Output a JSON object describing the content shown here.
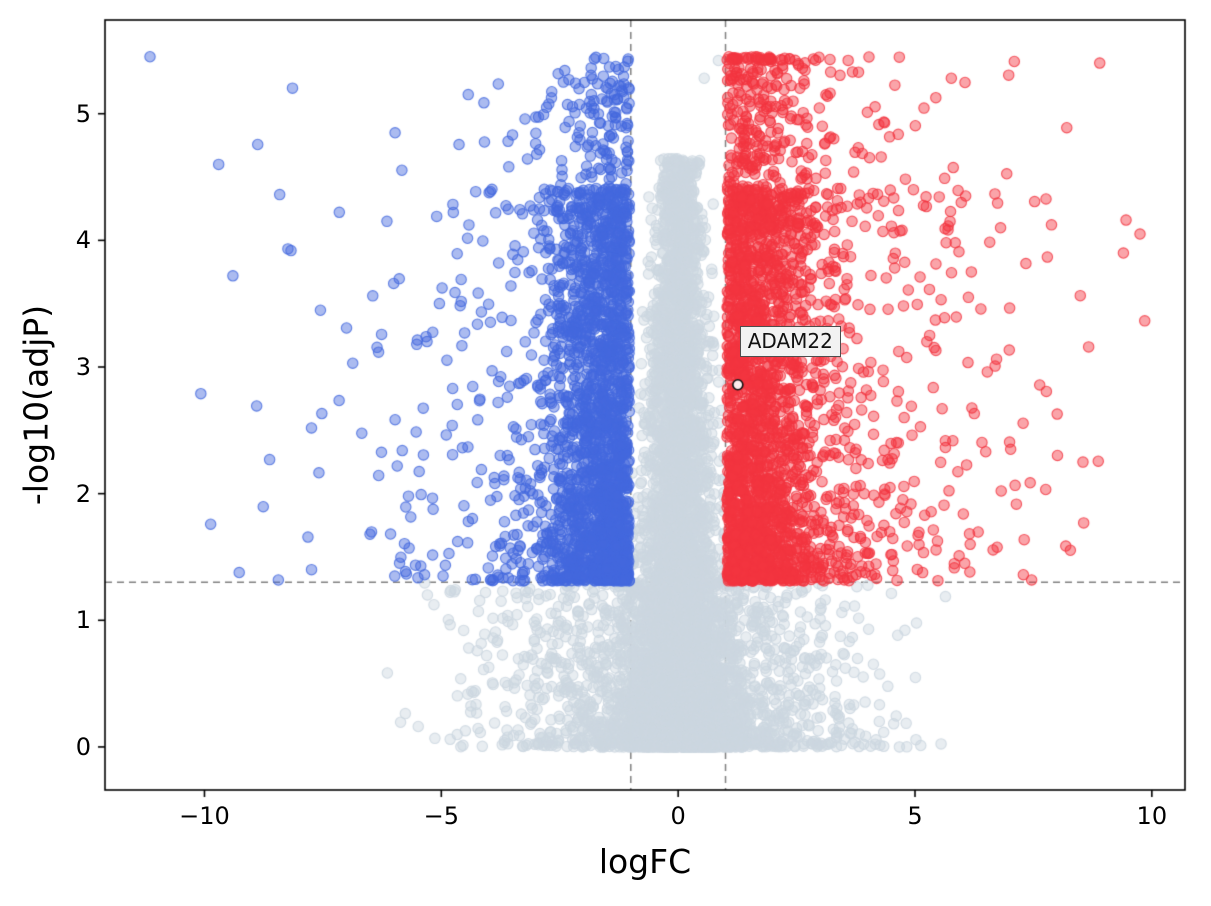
{
  "figure": {
    "background": "#ffffff",
    "spine_color": "#000000",
    "tick_color": "#000000"
  },
  "chart_data": {
    "type": "scatter",
    "variant": "volcano",
    "title": "",
    "xlabel": "logFC",
    "ylabel": "-log10(adjP)",
    "xlim": [
      -12.1,
      10.7
    ],
    "ylim": [
      -0.34,
      5.74
    ],
    "xticks": [
      -10,
      -5,
      0,
      5,
      10
    ],
    "xtick_labels": [
      "−10",
      "−5",
      "0",
      "5",
      "10"
    ],
    "yticks": [
      0,
      1,
      2,
      3,
      4,
      5
    ],
    "ytick_labels": [
      "0",
      "1",
      "2",
      "3",
      "4",
      "5"
    ],
    "grid": false,
    "legend": null,
    "thresholds": {
      "logfc_vlines": [
        -1,
        1
      ],
      "pvalue_hline": 1.301,
      "line_color": "#808080",
      "dash_pattern": [
        7,
        5
      ],
      "line_width": 1.5
    },
    "annotation": {
      "label": "ADAM22",
      "point_x": 1.26,
      "point_y": 2.86,
      "label_x": 1.3,
      "label_y": 3.32,
      "box_fill": "#f2f2f2",
      "box_edge": "#4d4d4d"
    },
    "seed": 1337,
    "marker_radius": 5.2,
    "series": [
      {
        "name": "not-significant",
        "kind": "ns",
        "fill": "rgba(205,215,224,0.45)",
        "edge": "rgba(205,215,224,0.85)",
        "n": 6500,
        "thresh": 1.301,
        "base_frac": 0.27,
        "base_sigma": 1.9,
        "base_xmax": 6.8,
        "core_ymax": 4.65,
        "core_pow": 2.0,
        "core_sigma0": 0.55,
        "core_taper": 0.075,
        "extra_points": [
          [
            0.85,
            5.42
          ],
          [
            0.55,
            5.28
          ]
        ]
      },
      {
        "name": "down-regulated",
        "kind": "down",
        "fill": "rgba(68,105,222,0.45)",
        "edge": "rgba(68,105,222,0.8)",
        "n": 2400,
        "thresh": 1.301,
        "x_sigma": 0.85,
        "x_tail_sigma": 3.1,
        "tail_frac": 0.16,
        "x_max": 11.2,
        "y_span": 3.1,
        "y_pow": 1.6,
        "high_frac": 0.09,
        "high_y0": 4.0,
        "high_span": 1.45,
        "y_cap": 5.45,
        "extra_points": [
          [
            -11.15,
            5.45
          ],
          [
            -9.7,
            4.6
          ],
          [
            -9.4,
            3.72
          ]
        ]
      },
      {
        "name": "up-regulated",
        "kind": "up",
        "fill": "rgba(243,53,64,0.45)",
        "edge": "rgba(243,53,64,0.8)",
        "n": 2800,
        "thresh": 1.301,
        "x_sigma": 0.95,
        "x_tail_sigma": 3.0,
        "tail_frac": 0.2,
        "x_max": 9.85,
        "y_span": 3.1,
        "y_pow": 1.45,
        "high_frac": 0.14,
        "high_y0": 4.05,
        "high_span": 1.55,
        "y_cap": 5.45,
        "extra_points": [
          [
            9.75,
            4.05
          ],
          [
            9.4,
            3.9
          ],
          [
            8.9,
            5.4
          ]
        ]
      }
    ]
  }
}
